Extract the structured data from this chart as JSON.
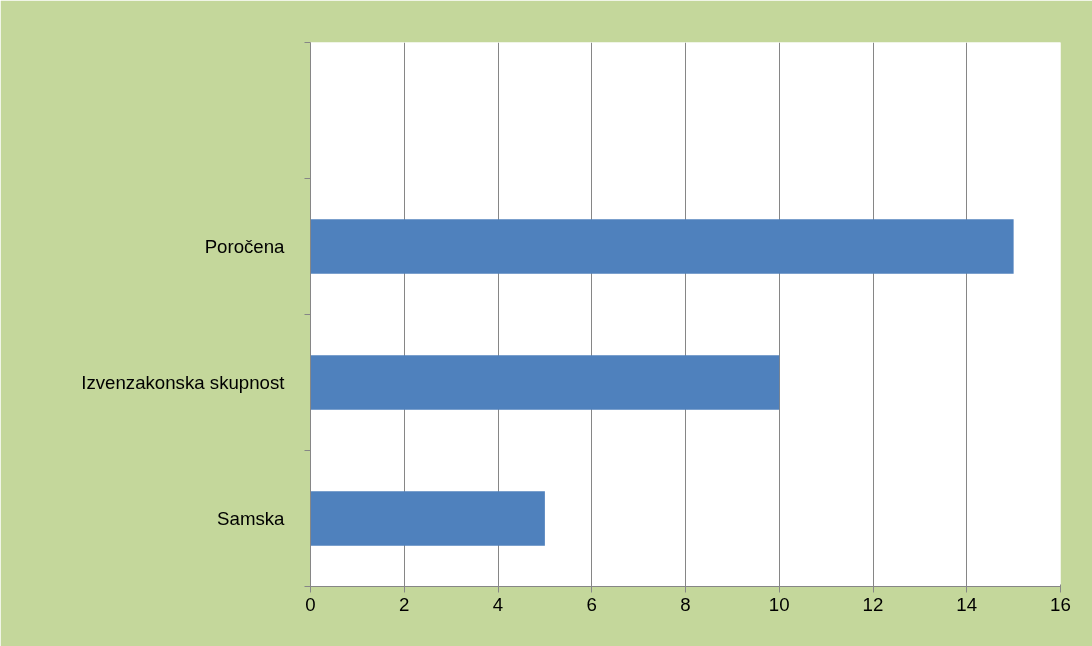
{
  "chart_data": {
    "type": "bar",
    "orientation": "horizontal",
    "categories": [
      null,
      "Poročena",
      "Izvenzakonska skupnost",
      "Samska"
    ],
    "values": [
      null,
      15,
      10,
      5
    ],
    "color": "#4f81bd",
    "xlim": [
      0,
      16
    ],
    "xticks": [
      0,
      2,
      4,
      6,
      8,
      10,
      12,
      14,
      16
    ],
    "grid": "x"
  }
}
